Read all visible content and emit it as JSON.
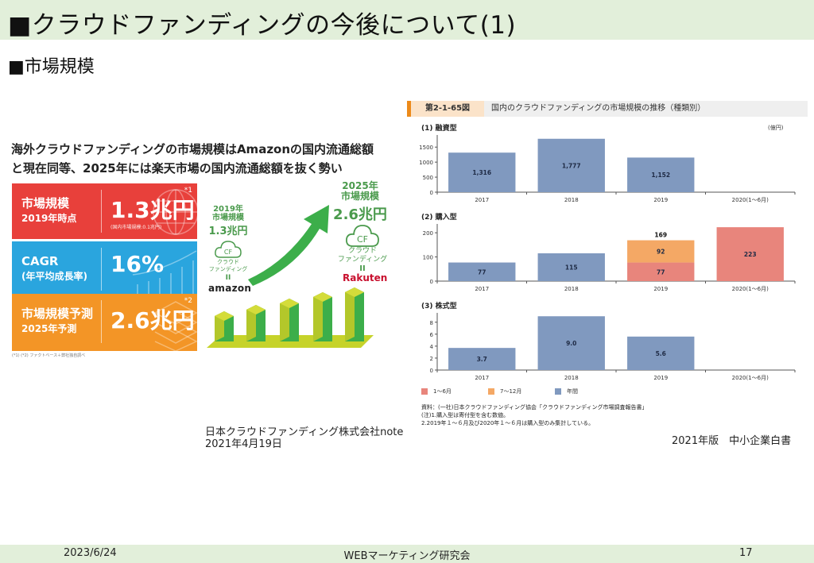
{
  "slide": {
    "title": "■クラウドファンディングの今後について(1)",
    "section": "■市場規模"
  },
  "infographic": {
    "headline_line1": "海外クラウドファンディングの市場規模はAmazonの国内流通総額",
    "headline_line2": "と現在同等、2025年には楽天市場の国内流通総額を抜く勢い",
    "stats": [
      {
        "label": "市場規模",
        "sub": "2019年時点",
        "value": "1.3兆円",
        "note": "(国内市場規模:0.1兆円)",
        "sup": "*1",
        "color": "#e8403b"
      },
      {
        "label": "CAGR",
        "sub": "(年平均成長率)",
        "value": "16%",
        "note": "",
        "sup": "",
        "color": "#2aa5de"
      },
      {
        "label": "市場規模予測",
        "sub": "2025年予測",
        "value": "2.6兆円",
        "note": "",
        "sup": "*2",
        "color": "#f39526"
      }
    ],
    "footnote": "(*1) (*2) ファクトベース＋弊社独自調べ",
    "left_block": {
      "year": "2019年",
      "label": "市場規模",
      "value": "1.3兆円",
      "cf": "CF",
      "caption1": "クラウド",
      "caption2": "ファンディング",
      "equals": "II",
      "brand": "amazon"
    },
    "right_block": {
      "year": "2025年",
      "label": "市場規模",
      "value": "2.6兆円",
      "cf": "CF",
      "caption1": "クラウド",
      "caption2": "ファンディング",
      "equals": "II",
      "brand": "Rakuten"
    },
    "source_line1": "日本クラウドファンディング株式会社note",
    "source_line2": "2021年4月19日"
  },
  "figure": {
    "number": "第2-1-65図",
    "title": "国内のクラウドファンディングの市場規模の推移（種類別）",
    "unit": "(億円)",
    "source_line1": "資料：(一社)日本クラウドファンディング協会「クラウドファンディング市場調査報告書」",
    "source_line2": "(注)1.購入型は寄付型を含む数値。",
    "source_line3": "2.2019年１～６月及び2020年１～６月は購入型のみ集計している。",
    "publisher": "2021年版　中小企業白書",
    "legend": [
      {
        "label": "1～6月",
        "color": "#e8857c"
      },
      {
        "label": "7～12月",
        "color": "#f4a865"
      },
      {
        "label": "年間",
        "color": "#8099bf"
      }
    ]
  },
  "chart_data": [
    {
      "type": "bar",
      "title": "(1) 融資型",
      "unit": "億円",
      "categories": [
        "2017",
        "2018",
        "2019",
        "2020(1～6月)"
      ],
      "series": [
        {
          "name": "年間",
          "values": [
            1316,
            1777,
            1152,
            null
          ],
          "labels": [
            "1,316",
            "1,777",
            "1,152",
            ""
          ]
        }
      ],
      "yticks": [
        0,
        500,
        1000,
        1500
      ],
      "ylim": [
        0,
        1850
      ]
    },
    {
      "type": "bar",
      "title": "(2) 購入型",
      "unit": "億円",
      "categories": [
        "2017",
        "2018",
        "2019",
        "2020(1～6月)"
      ],
      "series": [
        {
          "name": "年間",
          "values": [
            77,
            115,
            null,
            null
          ],
          "labels": [
            "77",
            "115",
            "",
            ""
          ]
        },
        {
          "name": "1～6月",
          "values": [
            null,
            null,
            77,
            223
          ],
          "labels": [
            "",
            "",
            "77",
            "223"
          ]
        },
        {
          "name": "7～12月",
          "values": [
            null,
            null,
            92,
            null
          ],
          "labels": [
            "",
            "",
            "92",
            ""
          ]
        }
      ],
      "totals": [
        null,
        null,
        169,
        null
      ],
      "total_labels": [
        "",
        "",
        "169",
        ""
      ],
      "yticks": [
        0,
        100,
        200
      ],
      "ylim": [
        0,
        230
      ]
    },
    {
      "type": "bar",
      "title": "(3) 株式型",
      "unit": "億円",
      "categories": [
        "2017",
        "2018",
        "2019",
        "2020(1～6月)"
      ],
      "series": [
        {
          "name": "年間",
          "values": [
            3.7,
            9.0,
            5.6,
            null
          ],
          "labels": [
            "3.7",
            "9.0",
            "5.6",
            ""
          ]
        }
      ],
      "yticks": [
        0,
        2,
        4,
        6,
        8
      ],
      "ylim": [
        0,
        9.3
      ]
    }
  ],
  "footer": {
    "date": "2023/6/24",
    "organization": "WEBマーケティング研究会",
    "page": "17"
  }
}
